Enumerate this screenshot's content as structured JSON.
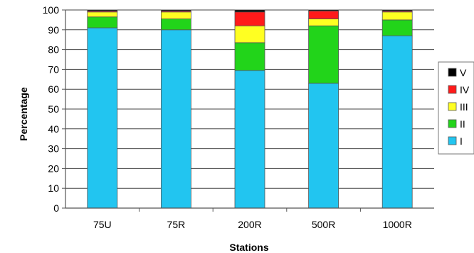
{
  "chart_data": {
    "type": "bar",
    "stacked": true,
    "title": "",
    "xlabel": "Stations",
    "ylabel": "Percentage",
    "ylim": [
      0,
      100
    ],
    "yticks": [
      0,
      10,
      20,
      30,
      40,
      50,
      60,
      70,
      80,
      90,
      100
    ],
    "grid": true,
    "legend_position": "right",
    "categories": [
      "75U",
      "75R",
      "200R",
      "500R",
      "1000R"
    ],
    "series": [
      {
        "name": "I",
        "color": "#22c5f0",
        "values": [
          91,
          90,
          69.5,
          63,
          87
        ]
      },
      {
        "name": "II",
        "color": "#22d41a",
        "values": [
          5.5,
          5.5,
          14,
          29,
          8
        ]
      },
      {
        "name": "III",
        "color": "#ffff22",
        "values": [
          2.5,
          3.5,
          8.5,
          3.5,
          4
        ]
      },
      {
        "name": "IV",
        "color": "#ff1a1a",
        "values": [
          0.5,
          0.5,
          7,
          4,
          0.5
        ]
      },
      {
        "name": "V",
        "color": "#000000",
        "values": [
          0.5,
          0.5,
          1,
          0.5,
          0.5
        ]
      }
    ]
  }
}
